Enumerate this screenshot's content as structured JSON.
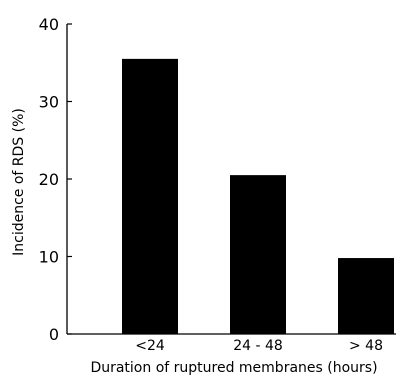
{
  "chart_data": {
    "type": "bar",
    "categories": [
      "<24",
      "24 - 48",
      "> 48"
    ],
    "values": [
      35.5,
      20.5,
      9.8
    ],
    "xlabel": "Duration of ruptured membranes (hours)",
    "ylabel": "Incidence of RDS (%)",
    "ylim": [
      0,
      40
    ],
    "yticks": [
      "0",
      "10",
      "20",
      "30",
      "40"
    ],
    "grid": false,
    "bar_color": "#000000"
  }
}
